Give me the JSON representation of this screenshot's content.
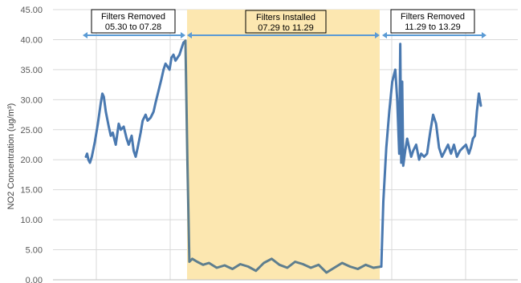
{
  "chart_data": {
    "type": "line",
    "xlabel": "",
    "ylabel": "NO2 Concentration (ug/m³)",
    "ylim": [
      0,
      45
    ],
    "y_ticks": [
      "0.00",
      "5.00",
      "10.00",
      "15.00",
      "20.00",
      "25.00",
      "30.00",
      "35.00",
      "40.00",
      "45.00"
    ],
    "grid": true,
    "x_axis_note": "date axis (tick labels not visible in screenshot)",
    "colors": {
      "line": "#4A79B0",
      "line_installed": "#5E7E8E",
      "shade": "#FCE7B0",
      "arrow": "#5B9BD5",
      "grid": "#D9D9D9"
    },
    "regions": [
      {
        "name": "removed-1",
        "x_start": "05.30",
        "x_end": "07.28",
        "label_line1": "Filters Removed",
        "label_line2": "05.30 to 07.28",
        "shaded": false
      },
      {
        "name": "installed",
        "x_start": "07.29",
        "x_end": "11.29",
        "label_line1": "Filters Installed",
        "label_line2": "07.29 to 11.29",
        "shaded": true
      },
      {
        "name": "removed-2",
        "x_start": "11.29",
        "x_end": "13.29",
        "label_line1": "Filters Removed",
        "label_line2": "11.29 to 13.29",
        "shaded": false
      }
    ],
    "series": [
      {
        "x_fraction": [
          0.0,
          0.012,
          0.025,
          0.04,
          0.06,
          0.09,
          0.12,
          0.15,
          0.165,
          0.18,
          0.2,
          0.23,
          0.25,
          0.27,
          0.285,
          0.3,
          0.33,
          0.35,
          0.38,
          0.41,
          0.43,
          0.46,
          0.48,
          0.5,
          0.52,
          0.55,
          0.57,
          0.6,
          0.62,
          0.65,
          0.68,
          0.7,
          0.73,
          0.76,
          0.78,
          0.8,
          0.82,
          0.84,
          0.86,
          0.88,
          0.9,
          0.92,
          0.94,
          0.96,
          0.98,
          1.0
        ],
        "values": [
          20.5,
          21.0,
          20.0,
          19.5,
          20.5,
          23.0,
          26.0,
          29.5,
          31.0,
          30.5,
          28.0,
          25.5,
          24.0,
          24.5,
          23.5,
          22.5,
          26.0,
          25.0,
          25.5,
          23.5,
          22.5,
          24.0,
          21.5,
          20.5,
          22.0,
          24.5,
          26.5,
          27.5,
          26.5,
          27.0,
          28.0,
          29.5,
          31.5,
          33.5,
          35.0,
          36.0,
          35.5,
          35.0,
          37.0,
          37.5,
          36.5,
          37.0,
          37.5,
          38.5,
          39.5,
          39.8
        ]
      },
      {
        "x_fraction": [
          0.0,
          0.01,
          0.02,
          0.035,
          0.06,
          0.09,
          0.12,
          0.16,
          0.2,
          0.24,
          0.28,
          0.32,
          0.36,
          0.4,
          0.44,
          0.48,
          0.52,
          0.56,
          0.6,
          0.64,
          0.68,
          0.72,
          0.76,
          0.8,
          0.84,
          0.88,
          0.92,
          0.96,
          1.0
        ],
        "values": [
          39.8,
          20.0,
          3.0,
          3.5,
          3.0,
          2.5,
          2.8,
          2.0,
          2.4,
          1.8,
          2.6,
          2.2,
          1.5,
          2.8,
          3.5,
          2.5,
          2.0,
          3.0,
          2.6,
          2.0,
          2.5,
          1.2,
          2.0,
          2.8,
          2.2,
          1.8,
          2.5,
          2.0,
          2.2
        ]
      },
      {
        "x_fraction": [
          0.0,
          0.02,
          0.05,
          0.08,
          0.11,
          0.14,
          0.16,
          0.18,
          0.19,
          0.2,
          0.21,
          0.22,
          0.24,
          0.26,
          0.28,
          0.3,
          0.32,
          0.35,
          0.38,
          0.4,
          0.43,
          0.46,
          0.49,
          0.52,
          0.55,
          0.58,
          0.61,
          0.64,
          0.67,
          0.7,
          0.73,
          0.76,
          0.79,
          0.82,
          0.85,
          0.88,
          0.9,
          0.92,
          0.94,
          0.96,
          0.98,
          1.0
        ],
        "values": [
          2.2,
          13.0,
          22.0,
          28.0,
          33.0,
          35.0,
          30.0,
          21.0,
          39.3,
          19.5,
          33.0,
          19.0,
          21.5,
          23.5,
          22.0,
          20.5,
          21.5,
          22.5,
          20.0,
          21.0,
          20.5,
          21.0,
          24.5,
          27.5,
          26.0,
          22.0,
          20.5,
          21.5,
          22.5,
          21.0,
          22.5,
          20.5,
          21.5,
          22.0,
          22.5,
          21.0,
          22.0,
          23.5,
          24.0,
          28.0,
          31.0,
          29.0
        ]
      }
    ]
  }
}
